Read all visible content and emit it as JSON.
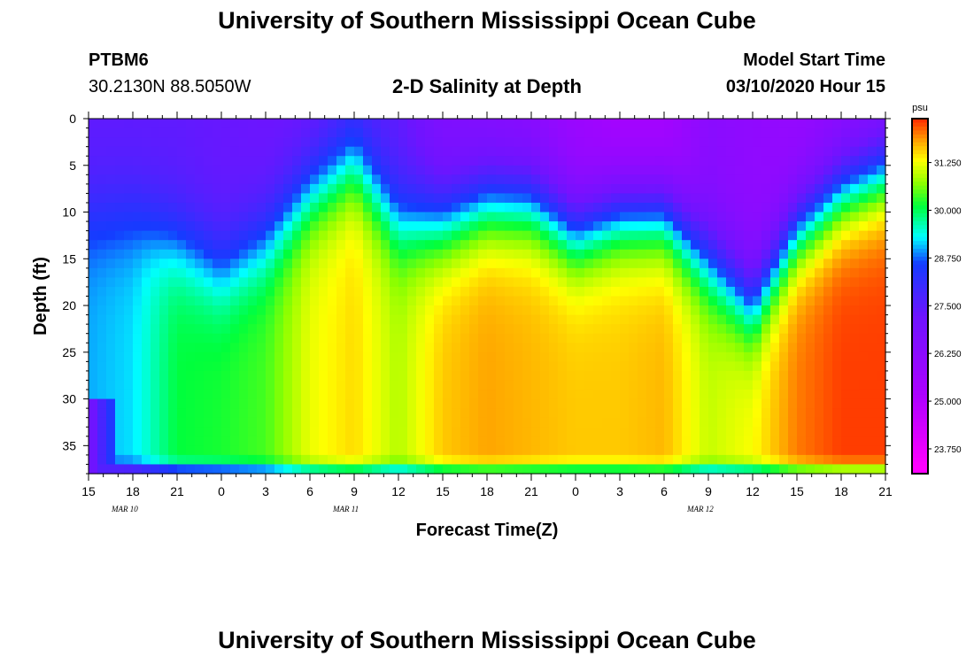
{
  "page_title": "University of Southern Mississippi Ocean Cube",
  "footer_title": "University of Southern Mississippi Ocean Cube",
  "station": {
    "id": "PTBM6",
    "coords": "30.2130N 88.5050W"
  },
  "plot_title": "2-D Salinity at Depth",
  "model_start": {
    "label": "Model Start Time",
    "value": "03/10/2020 Hour 15"
  },
  "chart_data": {
    "type": "heatmap",
    "title": "2-D Salinity at Depth",
    "xlabel": "Forecast Time(Z)",
    "ylabel": "Depth (ft)",
    "ylim": [
      0,
      38
    ],
    "y_ticks": [
      0,
      5,
      10,
      15,
      20,
      25,
      30,
      35
    ],
    "x_tick_labels": [
      "15",
      "18",
      "21",
      "0",
      "3",
      "6",
      "9",
      "12",
      "15",
      "18",
      "21",
      "0",
      "3",
      "6",
      "9",
      "12",
      "15",
      "18",
      "21"
    ],
    "date_labels": [
      {
        "label": "MAR 10",
        "tick_index": 1
      },
      {
        "label": "MAR 11",
        "tick_index": 6
      },
      {
        "label": "MAR 12",
        "tick_index": 14
      }
    ],
    "colorbar": {
      "unit": "psu",
      "range": [
        23.1,
        32.4
      ],
      "tick_values": [
        23.75,
        25.0,
        26.25,
        27.5,
        28.75,
        30.0,
        31.25
      ],
      "tick_labels": [
        "23.750",
        "25.000",
        "26.250",
        "27.500",
        "28.750",
        "30.000",
        "31.250"
      ]
    },
    "surface_salinity_psu": [
      27.4,
      27.4,
      27.4,
      27.3,
      27.2,
      27.2,
      27.6,
      27.4,
      26.6,
      26.4,
      26.2,
      25.7,
      25.3,
      25.3,
      26.3,
      26.1,
      25.9,
      26.1,
      26.3
    ],
    "halocline_depth_ft": [
      10,
      10,
      13,
      16,
      13,
      8,
      5,
      11,
      11,
      9,
      9,
      12,
      10,
      10,
      15,
      20,
      12,
      8,
      6
    ],
    "deep_salinity_psu": [
      29.0,
      29.2,
      30.1,
      30.2,
      30.4,
      31.2,
      31.5,
      30.9,
      31.6,
      31.8,
      31.7,
      31.6,
      31.6,
      31.7,
      31.0,
      31.3,
      32.0,
      32.3,
      32.3
    ]
  }
}
